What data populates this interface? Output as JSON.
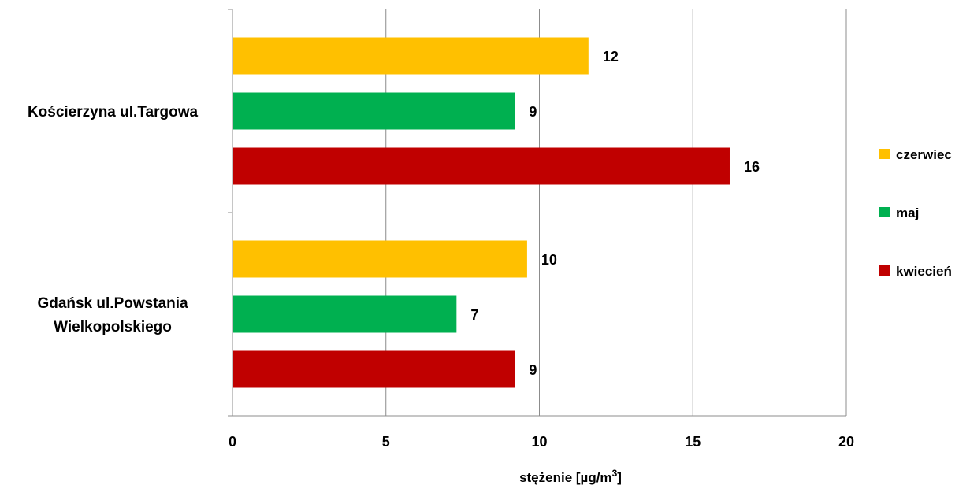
{
  "chart_data": {
    "type": "bar",
    "orientation": "horizontal",
    "categories": [
      [
        "Kościerzyna ul.Targowa"
      ],
      [
        "Gdańsk ul.Powstania",
        "Wielkopolskiego"
      ]
    ],
    "series": [
      {
        "name": "czerwiec",
        "color": "#FFC000",
        "values": [
          11.6,
          9.6
        ],
        "labels": [
          "12",
          "10"
        ]
      },
      {
        "name": "maj",
        "color": "#00B050",
        "values": [
          9.2,
          7.3
        ],
        "labels": [
          "9",
          "7"
        ]
      },
      {
        "name": "kwiecień",
        "color": "#C00000",
        "values": [
          16.2,
          9.2
        ],
        "labels": [
          "16",
          "9"
        ]
      }
    ],
    "xlim": [
      0,
      20
    ],
    "xticks": [
      0,
      5,
      10,
      15,
      20
    ],
    "xlabel": "stężenie [µg/m",
    "xlabel_sup": "3",
    "xlabel_end": "]",
    "grid": "vertical",
    "legend_position": "right"
  }
}
